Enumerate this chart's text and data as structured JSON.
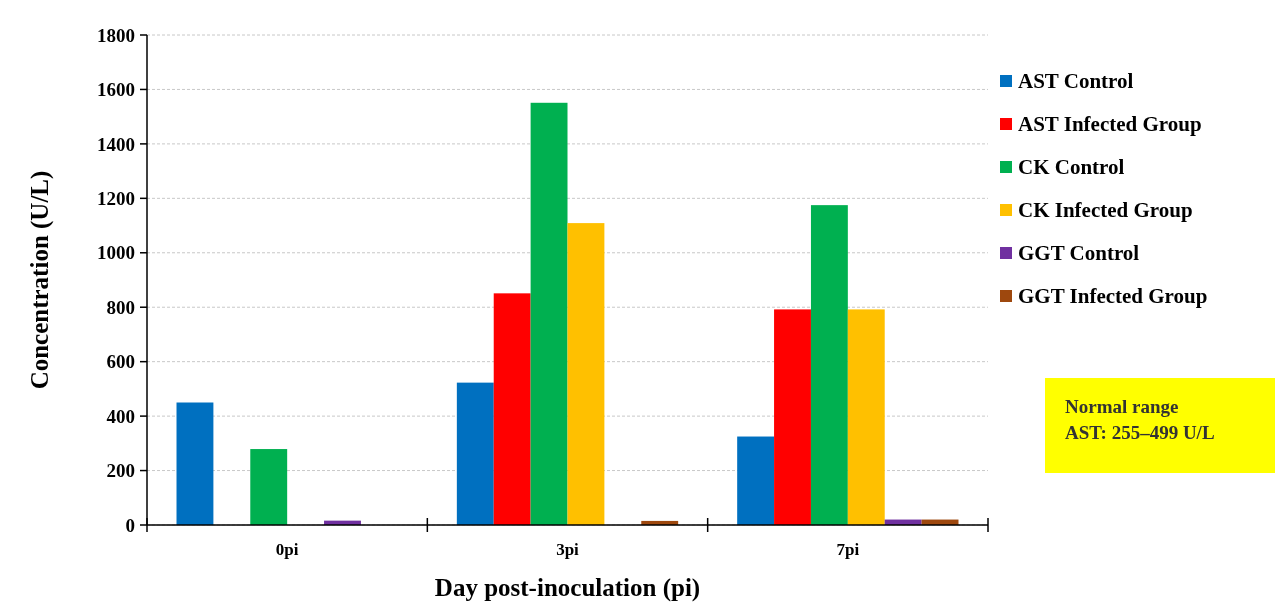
{
  "chart_data": {
    "type": "bar",
    "xlabel": "Day post-inoculation (pi)",
    "ylabel": "Concentration (U/L)",
    "categories": [
      "0pi",
      "3pi",
      "7pi"
    ],
    "series": [
      {
        "name": "AST Control",
        "color": "#0070c0",
        "values": [
          450,
          523,
          325
        ]
      },
      {
        "name": "AST Infected Group",
        "color": "#ff0000",
        "values": [
          null,
          851,
          792
        ]
      },
      {
        "name": "CK Control",
        "color": "#00b050",
        "values": [
          279,
          1551,
          1175
        ]
      },
      {
        "name": "CK Infected Group",
        "color": "#ffc000",
        "values": [
          null,
          1109,
          792
        ]
      },
      {
        "name": "GGT Control",
        "color": "#7030a0",
        "values": [
          16,
          null,
          20
        ]
      },
      {
        "name": "GGT Infected Group",
        "color": "#9e480e",
        "values": [
          null,
          15,
          20
        ]
      }
    ],
    "ylim": [
      0,
      1800
    ],
    "yticks": [
      0,
      200,
      400,
      600,
      800,
      1000,
      1200,
      1400,
      1600,
      1800
    ],
    "grid": "y",
    "legend": "right",
    "annotations": [
      "Normal range",
      "AST: 255–499 U/L"
    ]
  }
}
